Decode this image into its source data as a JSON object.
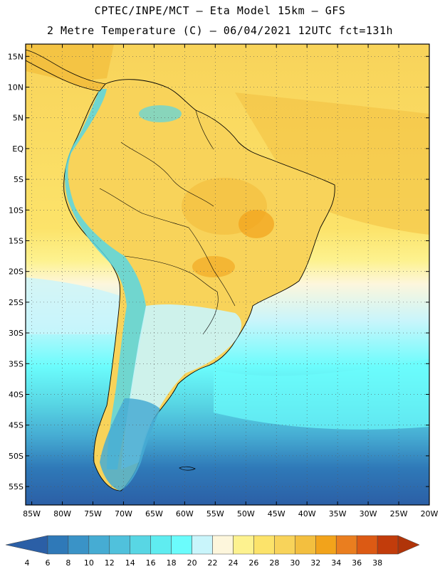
{
  "header": {
    "title_line1": "CPTEC/INPE/MCT  –   Eta Model 15km  –  GFS",
    "title_line2": "2 Metre Temperature (C) – 06/04/2021 12UTC fct=131h"
  },
  "map": {
    "lat_labels": [
      "15N",
      "10N",
      "5N",
      "EQ",
      "5S",
      "10S",
      "15S",
      "20S",
      "25S",
      "30S",
      "35S",
      "40S",
      "45S",
      "50S",
      "55S"
    ],
    "lon_labels": [
      "85W",
      "80W",
      "75W",
      "70W",
      "65W",
      "60W",
      "55W",
      "50W",
      "45W",
      "40W",
      "35W",
      "30W",
      "25W",
      "20W"
    ],
    "lat_range": [
      17,
      -58
    ],
    "lon_range": [
      -86,
      -20
    ]
  },
  "colorbar": {
    "labels": [
      "4",
      "6",
      "8",
      "10",
      "12",
      "14",
      "16",
      "18",
      "20",
      "22",
      "24",
      "26",
      "28",
      "30",
      "32",
      "34",
      "36",
      "38"
    ],
    "colors": [
      "#2b5fa6",
      "#2f79b8",
      "#3a93c7",
      "#46acd3",
      "#50c1dc",
      "#58d6e4",
      "#5fecf0",
      "#6bfcfc",
      "#c9f5fb",
      "#fdf6dc",
      "#fdf28f",
      "#fce36a",
      "#f8d35a",
      "#f3bf3f",
      "#f2a31b",
      "#ea7e1f",
      "#dc5a14",
      "#c23c0b",
      "#b03409"
    ]
  }
}
